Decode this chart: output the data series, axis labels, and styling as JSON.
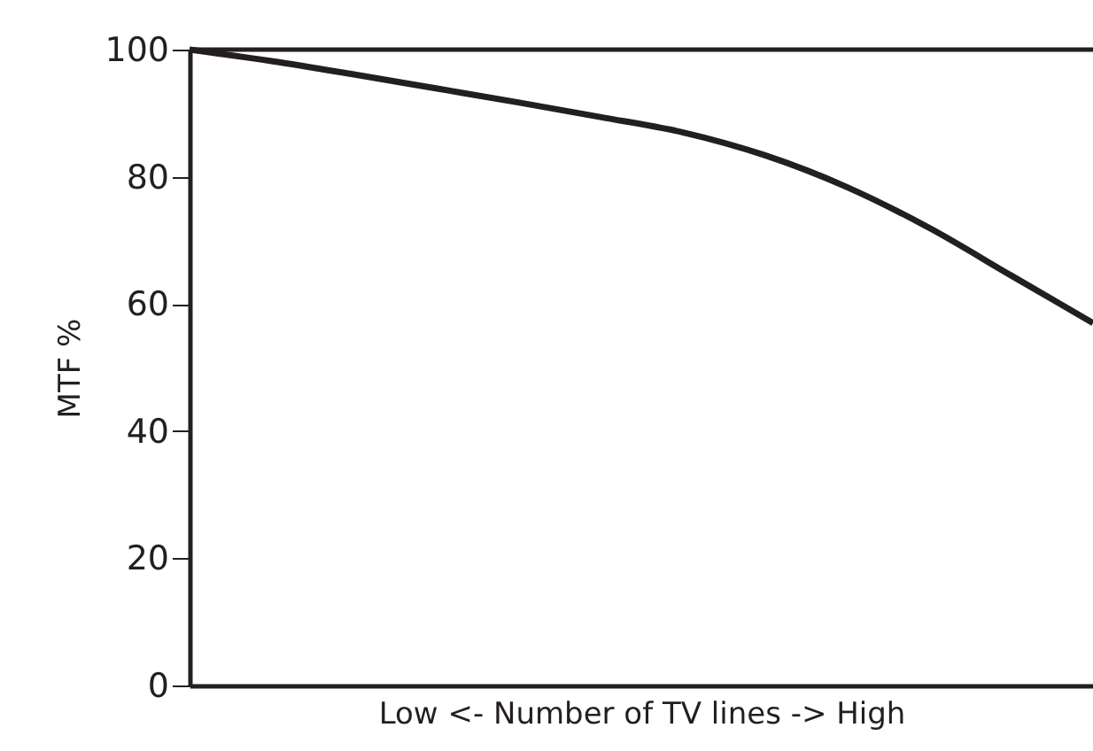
{
  "chart_data": {
    "type": "line",
    "ylabel": "MTF  %",
    "xlabel": "Low <- Number of TV lines  -> High",
    "categories": [
      null,
      null,
      null,
      null,
      null,
      null,
      null,
      null,
      null,
      null,
      null,
      null
    ],
    "series": [
      {
        "color": "#231f20",
        "values": [
          100,
          98.2,
          96.1,
          93.9,
          91.7,
          89.4,
          87,
          83.4,
          78.4,
          72,
          64.5,
          57
        ]
      }
    ],
    "ylim": [
      0,
      100
    ],
    "yticks": [
      0,
      20,
      40,
      60,
      80,
      100
    ],
    "ref_lines": [
      {
        "axis": "y",
        "value": 100,
        "color": "#231f20"
      }
    ],
    "tick_labels": "y",
    "grid": false,
    "marker": "none",
    "line_style": "solid"
  }
}
